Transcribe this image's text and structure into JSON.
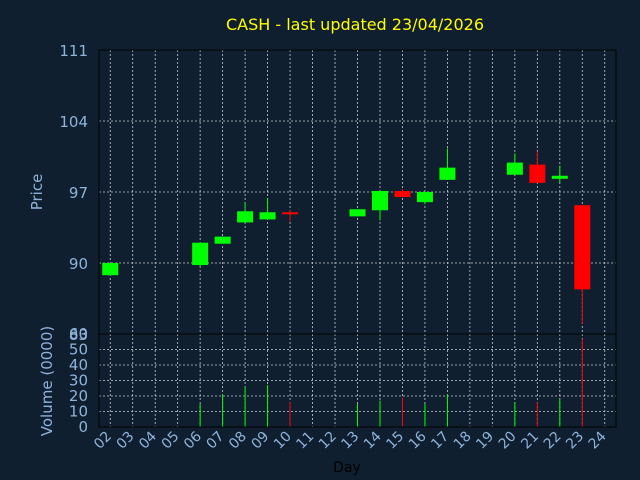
{
  "chart_data": [
    {
      "type": "candlestick",
      "title": "CASH - last updated 23/04/2026",
      "ylabel": "Price",
      "yticks": [
        "111",
        "104",
        "97",
        "90",
        "83"
      ],
      "ylim": [
        83,
        111
      ],
      "x": [
        "02",
        "03",
        "04",
        "05",
        "06",
        "07",
        "08",
        "09",
        "10",
        "11",
        "12",
        "13",
        "14",
        "15",
        "16",
        "17",
        "18",
        "19",
        "20",
        "21",
        "22",
        "23",
        "24"
      ],
      "candles": [
        {
          "day": "02",
          "open": 88.8,
          "close": 90.0,
          "high": 90.0,
          "low": 88.8,
          "dir": "up"
        },
        {
          "day": "06",
          "open": 89.8,
          "close": 92.0,
          "high": 92.0,
          "low": 89.6,
          "dir": "up"
        },
        {
          "day": "07",
          "open": 91.9,
          "close": 92.6,
          "high": 92.6,
          "low": 91.9,
          "dir": "up"
        },
        {
          "day": "08",
          "open": 94.0,
          "close": 95.1,
          "high": 96.0,
          "low": 94.0,
          "dir": "up"
        },
        {
          "day": "09",
          "open": 94.3,
          "close": 95.0,
          "high": 96.4,
          "low": 94.3,
          "dir": "up"
        },
        {
          "day": "10",
          "open": 95.0,
          "close": 94.9,
          "high": 95.2,
          "low": 94.1,
          "dir": "down"
        },
        {
          "day": "13",
          "open": 94.6,
          "close": 95.3,
          "high": 95.3,
          "low": 94.6,
          "dir": "up"
        },
        {
          "day": "14",
          "open": 95.2,
          "close": 97.1,
          "high": 97.1,
          "low": 94.2,
          "dir": "up"
        },
        {
          "day": "15",
          "open": 97.1,
          "close": 96.5,
          "high": 97.3,
          "low": 96.5,
          "dir": "down"
        },
        {
          "day": "16",
          "open": 96.0,
          "close": 97.0,
          "high": 97.1,
          "low": 95.8,
          "dir": "up"
        },
        {
          "day": "17",
          "open": 98.2,
          "close": 99.4,
          "high": 101.3,
          "low": 98.2,
          "dir": "up"
        },
        {
          "day": "20",
          "open": 98.7,
          "close": 99.9,
          "high": 100.8,
          "low": 98.7,
          "dir": "up"
        },
        {
          "day": "21",
          "open": 99.7,
          "close": 97.9,
          "high": 101.0,
          "low": 97.9,
          "dir": "down"
        },
        {
          "day": "22",
          "open": 98.3,
          "close": 98.6,
          "high": 99.6,
          "low": 97.9,
          "dir": "up"
        },
        {
          "day": "23",
          "open": 95.7,
          "close": 87.4,
          "high": 95.7,
          "low": 84.0,
          "dir": "down"
        }
      ]
    },
    {
      "type": "bar",
      "ylabel": "Volume (0000)",
      "xlabel": "Day",
      "yticks": [
        "0",
        "10",
        "20",
        "30",
        "40",
        "50",
        "60"
      ],
      "ylim": [
        0,
        60
      ],
      "x": [
        "02",
        "03",
        "04",
        "05",
        "06",
        "07",
        "08",
        "09",
        "10",
        "11",
        "12",
        "13",
        "14",
        "15",
        "16",
        "17",
        "18",
        "19",
        "20",
        "21",
        "22",
        "23",
        "24"
      ],
      "bars": [
        {
          "day": "06",
          "value": 15,
          "dir": "up"
        },
        {
          "day": "07",
          "value": 21,
          "dir": "up"
        },
        {
          "day": "08",
          "value": 26,
          "dir": "up"
        },
        {
          "day": "09",
          "value": 27,
          "dir": "up"
        },
        {
          "day": "10",
          "value": 16,
          "dir": "down"
        },
        {
          "day": "13",
          "value": 15,
          "dir": "up"
        },
        {
          "day": "14",
          "value": 17,
          "dir": "up"
        },
        {
          "day": "15",
          "value": 19,
          "dir": "down"
        },
        {
          "day": "16",
          "value": 15,
          "dir": "up"
        },
        {
          "day": "17",
          "value": 21,
          "dir": "up"
        },
        {
          "day": "20",
          "value": 16,
          "dir": "up"
        },
        {
          "day": "21",
          "value": 16,
          "dir": "down"
        },
        {
          "day": "22",
          "value": 18,
          "dir": "up"
        },
        {
          "day": "23",
          "value": 57,
          "dir": "down"
        }
      ]
    }
  ],
  "colors": {
    "background": "#0f1f30",
    "title": "#ffff00",
    "axis_text": "#8fb3d9",
    "xlabel_text": "#000000",
    "up": "#00ff00",
    "down": "#ff0000",
    "grid": "#cccccc"
  }
}
